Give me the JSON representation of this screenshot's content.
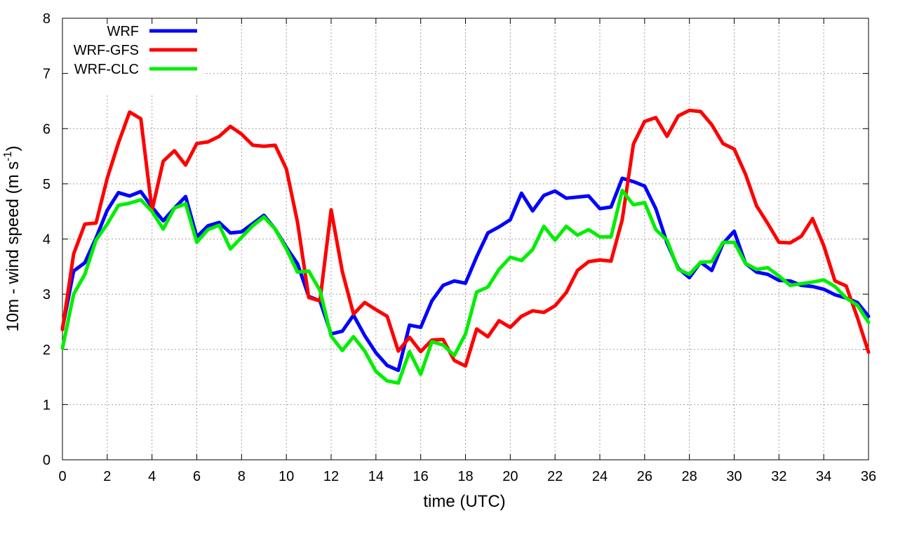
{
  "chart_data": {
    "type": "line",
    "xlabel": "time (UTC)",
    "ylabel": {
      "prefix": "10m - wind speed  (m s",
      "superscript": "-1",
      "suffix": ")"
    },
    "xlim": [
      0,
      36
    ],
    "ylim": [
      0,
      8
    ],
    "xticks": [
      "0",
      "2",
      "4",
      "6",
      "8",
      "10",
      "12",
      "14",
      "16",
      "18",
      "20",
      "22",
      "24",
      "26",
      "28",
      "30",
      "32",
      "34",
      "36"
    ],
    "yticks": [
      "0",
      "1",
      "2",
      "3",
      "4",
      "5",
      "6",
      "7",
      "8"
    ],
    "grid": true,
    "legend_position": "top-left",
    "x": [
      0,
      0.5,
      1,
      1.5,
      2,
      2.5,
      3,
      3.5,
      4,
      4.5,
      5,
      5.5,
      6,
      6.5,
      7,
      7.5,
      8,
      8.5,
      9,
      9.5,
      10,
      10.5,
      11,
      11.5,
      12,
      12.5,
      13,
      13.5,
      14,
      14.5,
      15,
      15.5,
      16,
      16.5,
      17,
      17.5,
      18,
      18.5,
      19,
      19.5,
      20,
      20.5,
      21,
      21.5,
      22,
      22.5,
      23,
      23.5,
      24,
      24.5,
      25,
      25.5,
      26,
      26.5,
      27,
      27.5,
      28,
      28.5,
      29,
      29.5,
      30,
      30.5,
      31,
      31.5,
      32,
      32.5,
      33,
      33.5,
      34,
      34.5,
      35,
      35.5,
      36
    ],
    "series": [
      {
        "name": "WRF",
        "color": "#0000ff",
        "values": [
          2.38,
          3.42,
          3.57,
          4.02,
          4.52,
          4.84,
          4.78,
          4.86,
          4.58,
          4.33,
          4.56,
          4.77,
          4.04,
          4.24,
          4.3,
          4.11,
          4.13,
          4.28,
          4.43,
          4.18,
          3.85,
          3.55,
          2.96,
          2.88,
          2.28,
          2.33,
          2.62,
          2.25,
          1.94,
          1.71,
          1.62,
          2.44,
          2.4,
          2.88,
          3.16,
          3.24,
          3.2,
          3.68,
          4.11,
          4.22,
          4.35,
          4.83,
          4.51,
          4.79,
          4.87,
          4.74,
          4.76,
          4.78,
          4.55,
          4.58,
          5.1,
          5.04,
          4.96,
          4.55,
          3.93,
          3.47,
          3.3,
          3.58,
          3.43,
          3.92,
          4.14,
          3.56,
          3.4,
          3.36,
          3.25,
          3.24,
          3.16,
          3.14,
          3.09,
          2.99,
          2.93,
          2.85,
          2.6
        ]
      },
      {
        "name": "WRF-GFS",
        "color": "#ff0000",
        "values": [
          2.36,
          3.73,
          4.27,
          4.29,
          5.1,
          5.74,
          6.3,
          6.18,
          4.52,
          5.41,
          5.6,
          5.34,
          5.73,
          5.76,
          5.86,
          6.04,
          5.9,
          5.7,
          5.68,
          5.7,
          5.27,
          4.3,
          2.94,
          2.88,
          4.53,
          3.41,
          2.64,
          2.85,
          2.72,
          2.6,
          1.97,
          2.22,
          1.96,
          2.17,
          2.18,
          1.8,
          1.7,
          2.37,
          2.23,
          2.52,
          2.4,
          2.6,
          2.7,
          2.67,
          2.79,
          3.03,
          3.43,
          3.59,
          3.62,
          3.6,
          4.35,
          5.72,
          6.13,
          6.2,
          5.86,
          6.23,
          6.33,
          6.31,
          6.07,
          5.73,
          5.63,
          5.18,
          4.6,
          4.28,
          3.94,
          3.93,
          4.05,
          4.37,
          3.88,
          3.24,
          3.15,
          2.58,
          1.95
        ]
      },
      {
        "name": "WRF-CLC",
        "color": "#00ee00",
        "values": [
          2.02,
          3.0,
          3.36,
          3.98,
          4.27,
          4.61,
          4.65,
          4.71,
          4.5,
          4.18,
          4.56,
          4.64,
          3.94,
          4.17,
          4.25,
          3.82,
          4.03,
          4.24,
          4.4,
          4.18,
          3.82,
          3.4,
          3.42,
          3.07,
          2.24,
          1.98,
          2.23,
          1.97,
          1.6,
          1.43,
          1.39,
          1.96,
          1.55,
          2.14,
          2.08,
          1.89,
          2.28,
          3.04,
          3.13,
          3.45,
          3.67,
          3.61,
          3.81,
          4.23,
          3.98,
          4.23,
          4.07,
          4.17,
          4.04,
          4.04,
          4.88,
          4.62,
          4.66,
          4.17,
          3.98,
          3.45,
          3.36,
          3.58,
          3.59,
          3.94,
          3.94,
          3.56,
          3.45,
          3.48,
          3.33,
          3.16,
          3.19,
          3.22,
          3.26,
          3.14,
          2.93,
          2.8,
          2.49
        ]
      }
    ]
  }
}
